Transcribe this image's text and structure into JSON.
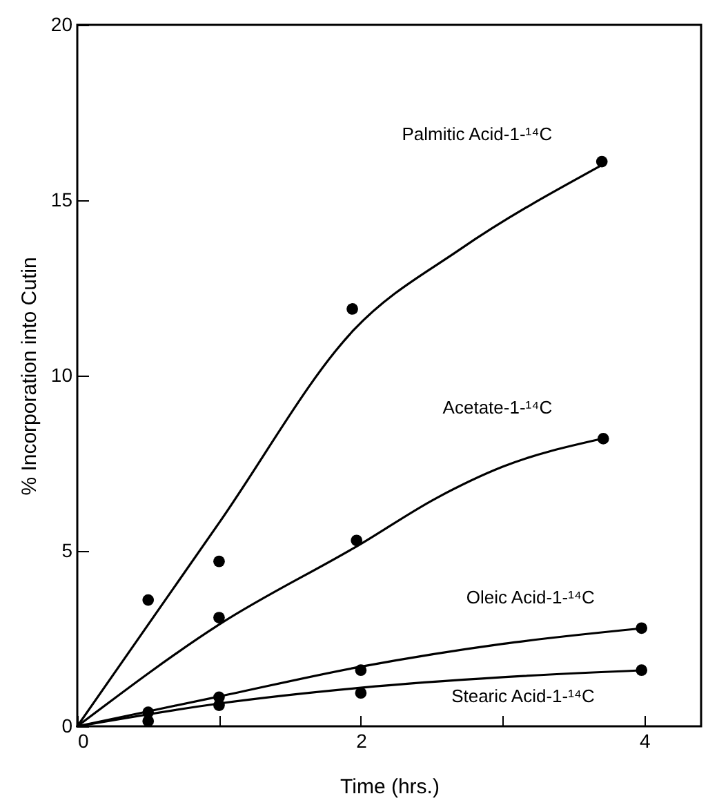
{
  "chart_data": {
    "type": "line",
    "xlabel": "Time (hrs.)",
    "ylabel": "% Incorporation into Cutin",
    "xlim": [
      0,
      4.4
    ],
    "xticks": [
      0,
      {
        "value": 1,
        "label": null
      },
      2,
      {
        "value": 3,
        "label": null
      },
      4
    ],
    "ylim": [
      0,
      20
    ],
    "yticks": [
      0,
      5,
      10,
      15,
      20
    ],
    "series": [
      {
        "name": "Palmitic Acid-1-¹⁴C",
        "marker": "none",
        "color": "#000000",
        "x": [
          0,
          1,
          1.95,
          2.7,
          3.7
        ],
        "values": [
          0,
          5.8,
          11.3,
          13.6,
          16.0
        ]
      },
      {
        "type": "scatter",
        "marker": "circle",
        "color": "#000000",
        "x": [
          0.5,
          1,
          1.94,
          3.7
        ],
        "values": [
          3.6,
          4.7,
          11.9,
          16.1
        ]
      },
      {
        "name": "Acetate-1-¹⁴C",
        "marker": "none",
        "color": "#000000",
        "x": [
          0,
          1,
          2,
          2.53,
          3,
          3.7
        ],
        "values": [
          0,
          2.9,
          5.2,
          6.5,
          7.4,
          8.2
        ]
      },
      {
        "type": "scatter",
        "marker": "circle",
        "color": "#000000",
        "x": [
          1,
          1.97,
          3.71
        ],
        "values": [
          3.1,
          5.3,
          8.2
        ]
      },
      {
        "name": "Oleic Acid-1-¹⁴C",
        "marker": "none",
        "color": "#000000",
        "x": [
          0,
          1,
          2,
          3,
          4
        ],
        "values": [
          0,
          0.85,
          1.7,
          2.35,
          2.8
        ]
      },
      {
        "type": "scatter",
        "marker": "circle",
        "color": "#000000",
        "x": [
          0.5,
          1,
          2,
          3.98
        ],
        "values": [
          0.4,
          0.83,
          1.6,
          2.8
        ]
      },
      {
        "name": "Stearic Acid-1-¹⁴C",
        "marker": "none",
        "color": "#000000",
        "x": [
          0,
          1,
          2,
          3,
          4
        ],
        "values": [
          0,
          0.65,
          1.1,
          1.4,
          1.6
        ]
      },
      {
        "type": "scatter",
        "marker": "circle",
        "color": "#000000",
        "x": [
          0.5,
          1,
          2,
          3.98
        ],
        "values": [
          0.15,
          0.6,
          0.95,
          1.6
        ]
      }
    ]
  }
}
